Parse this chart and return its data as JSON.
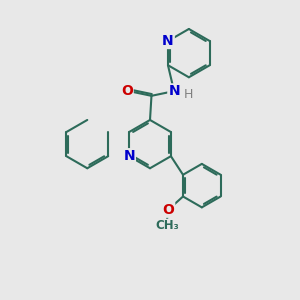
{
  "bg_color": "#e8e8e8",
  "bond_color": "#2d6b5a",
  "N_color": "#0000cc",
  "O_color": "#cc0000",
  "H_color": "#808080",
  "line_width": 1.5,
  "font_size": 10,
  "figsize": [
    3.0,
    3.0
  ],
  "dpi": 100,
  "xlim": [
    0,
    10
  ],
  "ylim": [
    0,
    10
  ]
}
